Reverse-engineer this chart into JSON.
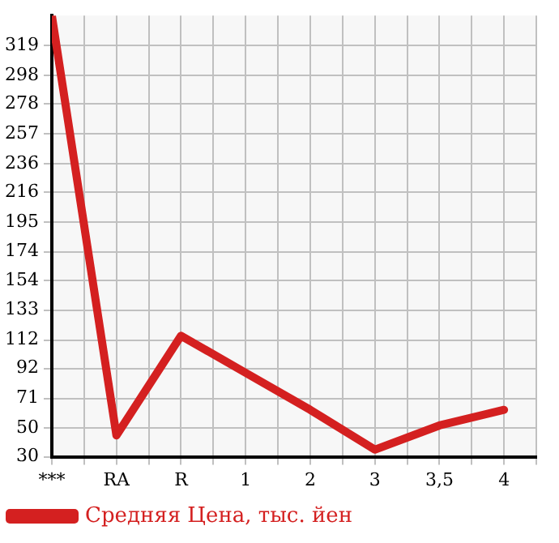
{
  "chart_data": {
    "type": "line",
    "categories": [
      "***",
      "RA",
      "R",
      "1",
      "2",
      "3",
      "3,5",
      "4"
    ],
    "series": [
      {
        "name": "Средняя Цена, тыс. йен",
        "color": "#d42020",
        "values": [
          340,
          45,
          115,
          89,
          63,
          35,
          52,
          63
        ]
      }
    ],
    "ylim": [
      30,
      340
    ],
    "yticks": [
      30,
      50,
      71,
      92,
      112,
      133,
      154,
      174,
      195,
      216,
      236,
      257,
      278,
      298,
      319
    ],
    "grid": true,
    "legend": "bottom",
    "marker": "none",
    "line_style": "solid"
  }
}
